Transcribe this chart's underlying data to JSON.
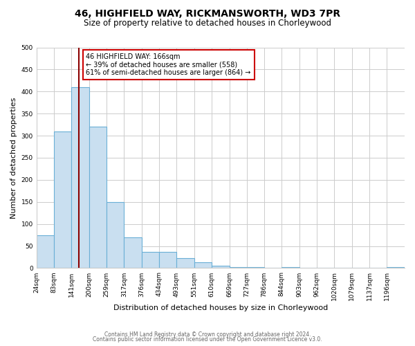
{
  "title": "46, HIGHFIELD WAY, RICKMANSWORTH, WD3 7PR",
  "subtitle": "Size of property relative to detached houses in Chorleywood",
  "xlabel": "Distribution of detached houses by size in Chorleywood",
  "ylabel": "Number of detached properties",
  "bin_edges": [
    24,
    83,
    141,
    200,
    259,
    317,
    376,
    434,
    493,
    551,
    610,
    669,
    727,
    786,
    844,
    903,
    962,
    1020,
    1079,
    1137,
    1196
  ],
  "bar_heights": [
    75,
    310,
    410,
    320,
    150,
    70,
    37,
    37,
    22,
    13,
    6,
    2,
    2,
    0,
    2,
    0,
    0,
    0,
    0,
    0,
    2
  ],
  "bar_color": "#c9dff0",
  "bar_edge_color": "#6aafd6",
  "property_x": 166,
  "property_line_color": "#8b0000",
  "ylim": [
    0,
    500
  ],
  "xlim": [
    24,
    1255
  ],
  "annotation_title": "46 HIGHFIELD WAY: 166sqm",
  "annotation_line1": "← 39% of detached houses are smaller (558)",
  "annotation_line2": "61% of semi-detached houses are larger (864) →",
  "annotation_box_color": "#ffffff",
  "annotation_box_edge": "#cc0000",
  "footer_line1": "Contains HM Land Registry data © Crown copyright and database right 2024.",
  "footer_line2": "Contains public sector information licensed under the Open Government Licence v3.0.",
  "tick_labels": [
    "24sqm",
    "83sqm",
    "141sqm",
    "200sqm",
    "259sqm",
    "317sqm",
    "376sqm",
    "434sqm",
    "493sqm",
    "551sqm",
    "610sqm",
    "669sqm",
    "727sqm",
    "786sqm",
    "844sqm",
    "903sqm",
    "962sqm",
    "1020sqm",
    "1079sqm",
    "1137sqm",
    "1196sqm"
  ],
  "yticks": [
    0,
    50,
    100,
    150,
    200,
    250,
    300,
    350,
    400,
    450,
    500
  ],
  "background_color": "#ffffff",
  "grid_color": "#cccccc",
  "title_fontsize": 10,
  "subtitle_fontsize": 8.5,
  "ylabel_fontsize": 8,
  "xlabel_fontsize": 8,
  "tick_fontsize": 6.5,
  "footer_fontsize": 5.5,
  "footer_color": "#666666"
}
